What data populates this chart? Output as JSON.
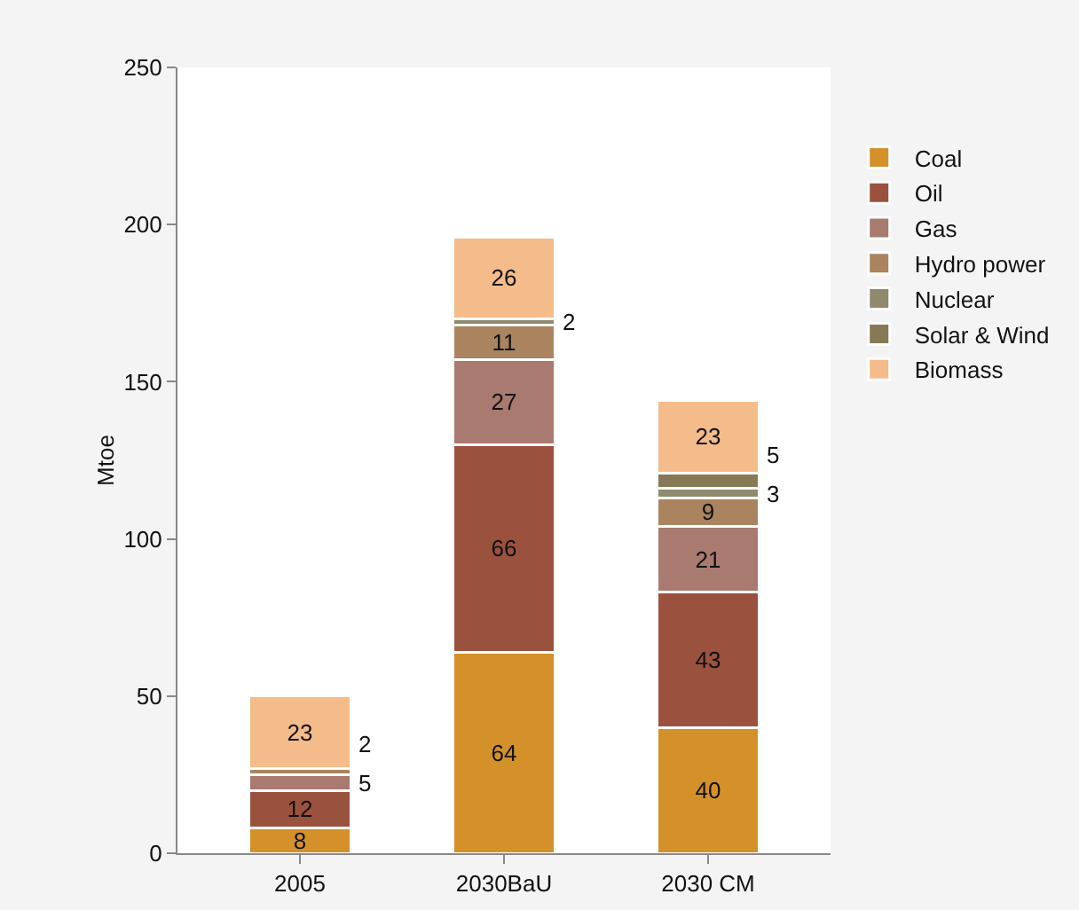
{
  "chart_data": {
    "type": "bar",
    "stacked": true,
    "ylabel": "Mtoe",
    "categories": [
      "2005",
      "2030BaU",
      "2030 CM"
    ],
    "ylim": [
      0,
      250
    ],
    "yticks": [
      0,
      50,
      100,
      150,
      200,
      250
    ],
    "grid": false,
    "legend": "right",
    "series": [
      {
        "name": "Coal",
        "color": "#d4912a",
        "values": [
          8,
          64,
          40
        ],
        "value_labels": [
          "8",
          "64",
          "40"
        ]
      },
      {
        "name": "Oil",
        "color": "#9a523e",
        "values": [
          12,
          66,
          43
        ],
        "value_labels": [
          "12",
          "66",
          "43"
        ]
      },
      {
        "name": "Gas",
        "color": "#a87a70",
        "values": [
          5,
          27,
          21
        ],
        "value_labels": [
          "5",
          "27",
          "21"
        ]
      },
      {
        "name": "Hydro power",
        "color": "#a9845f",
        "values": [
          2,
          11,
          9
        ],
        "value_labels": [
          "2",
          "11",
          "9"
        ]
      },
      {
        "name": "Nuclear",
        "color": "#8f8a6e",
        "values": [
          null,
          2,
          3
        ],
        "value_labels": [
          null,
          "2",
          "3"
        ]
      },
      {
        "name": "Solar & Wind",
        "color": "#857a55",
        "values": [
          null,
          null,
          5
        ],
        "value_labels": [
          null,
          null,
          "5"
        ]
      },
      {
        "name": "Biomass",
        "color": "#f4bc8a",
        "values": [
          23,
          26,
          23
        ],
        "value_labels": [
          "23",
          "26",
          "23"
        ]
      }
    ]
  }
}
